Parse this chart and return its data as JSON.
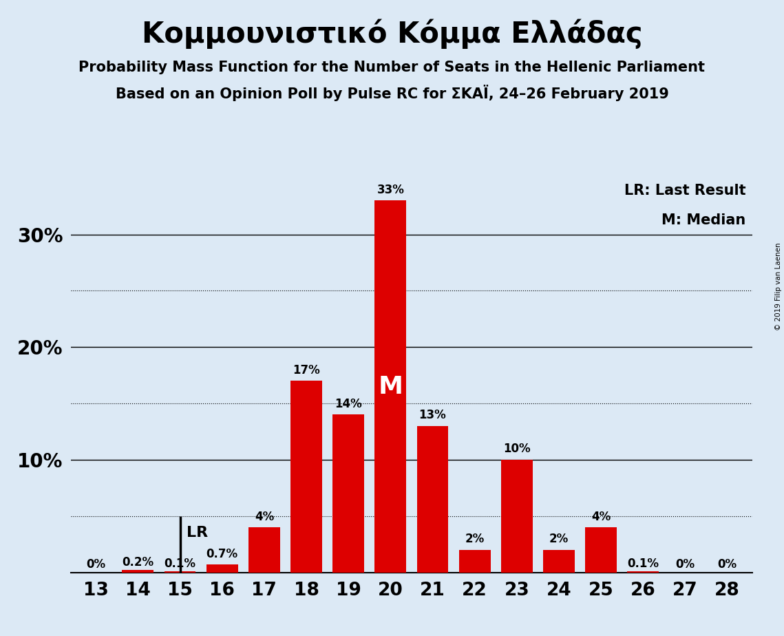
{
  "title": "Κομμουνιστικό Κόμμα Ελλάδας",
  "subtitle1": "Probability Mass Function for the Number of Seats in the Hellenic Parliament",
  "subtitle2": "Based on an Opinion Poll by Pulse RC for ΣΚΑΪ, 24–26 February 2019",
  "copyright": "© 2019 Filip van Laenen",
  "legend_lr": "LR: Last Result",
  "legend_m": "M: Median",
  "background_color": "#dce9f5",
  "bar_color": "#dd0000",
  "categories": [
    13,
    14,
    15,
    16,
    17,
    18,
    19,
    20,
    21,
    22,
    23,
    24,
    25,
    26,
    27,
    28
  ],
  "values": [
    0.0,
    0.2,
    0.1,
    0.7,
    4.0,
    17.0,
    14.0,
    33.0,
    13.0,
    2.0,
    10.0,
    2.0,
    4.0,
    0.1,
    0.0,
    0.0
  ],
  "labels": [
    "0%",
    "0.2%",
    "0.1%",
    "0.7%",
    "4%",
    "17%",
    "14%",
    "33%",
    "13%",
    "2%",
    "10%",
    "2%",
    "4%",
    "0.1%",
    "0%",
    "0%"
  ],
  "lr_seat": 15,
  "median_seat": 20,
  "ylim": [
    0,
    35
  ],
  "solid_lines": [
    10,
    20,
    30
  ],
  "dotted_lines": [
    5,
    15,
    25
  ]
}
